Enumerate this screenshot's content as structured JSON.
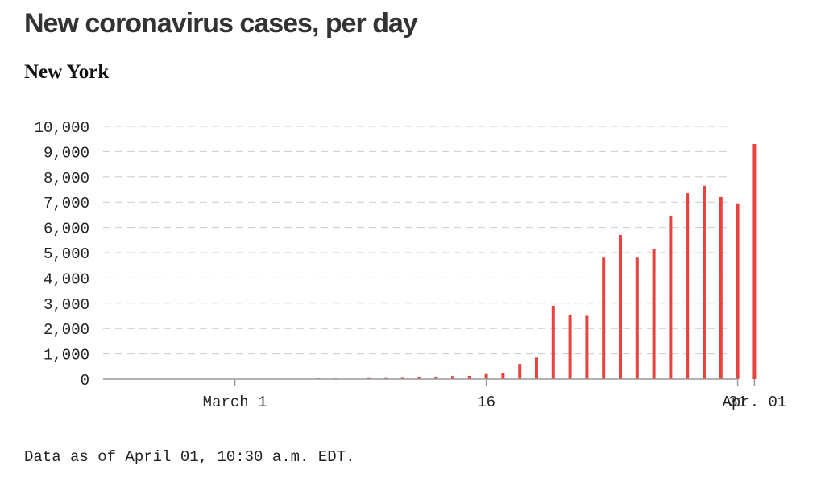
{
  "title": "New coronavirus cases, per day",
  "subtitle": "New York",
  "footnote": "Data as of April 01, 10:30 a.m. EDT.",
  "colors": {
    "bar": "#e8433f",
    "grid": "#cccccc",
    "axis": "#999999"
  },
  "chart_data": {
    "type": "bar",
    "xaxis": {
      "type": "date",
      "start": "2020-02-23",
      "end": "2020-04-01",
      "ticks": [
        {
          "date": "2020-03-01",
          "label": "March 1"
        },
        {
          "date": "2020-03-16",
          "label": "16"
        },
        {
          "date": "2020-03-31",
          "label": "31"
        },
        {
          "date": "2020-04-01",
          "label": "Apr. 01"
        }
      ]
    },
    "ylim": [
      0,
      10000
    ],
    "yticks": [
      "0",
      "1,000",
      "2,000",
      "3,000",
      "4,000",
      "5,000",
      "6,000",
      "7,000",
      "8,000",
      "9,000",
      "10,000"
    ],
    "grid": true,
    "series": [
      {
        "x": [
          "2020-03-04",
          "2020-03-05",
          "2020-03-06",
          "2020-03-07",
          "2020-03-08",
          "2020-03-09",
          "2020-03-10",
          "2020-03-11",
          "2020-03-12",
          "2020-03-13",
          "2020-03-14",
          "2020-03-15",
          "2020-03-16",
          "2020-03-17",
          "2020-03-18",
          "2020-03-19",
          "2020-03-20",
          "2020-03-21",
          "2020-03-22",
          "2020-03-23",
          "2020-03-24",
          "2020-03-25",
          "2020-03-26",
          "2020-03-27",
          "2020-03-28",
          "2020-03-29",
          "2020-03-30",
          "2020-03-31",
          "2020-04-01"
        ],
        "values": [
          10,
          20,
          30,
          30,
          20,
          40,
          40,
          50,
          60,
          90,
          120,
          130,
          200,
          250,
          600,
          850,
          2900,
          2550,
          2500,
          4800,
          5700,
          4800,
          5150,
          6450,
          7350,
          7650,
          7200,
          6950,
          9300
        ]
      }
    ]
  }
}
